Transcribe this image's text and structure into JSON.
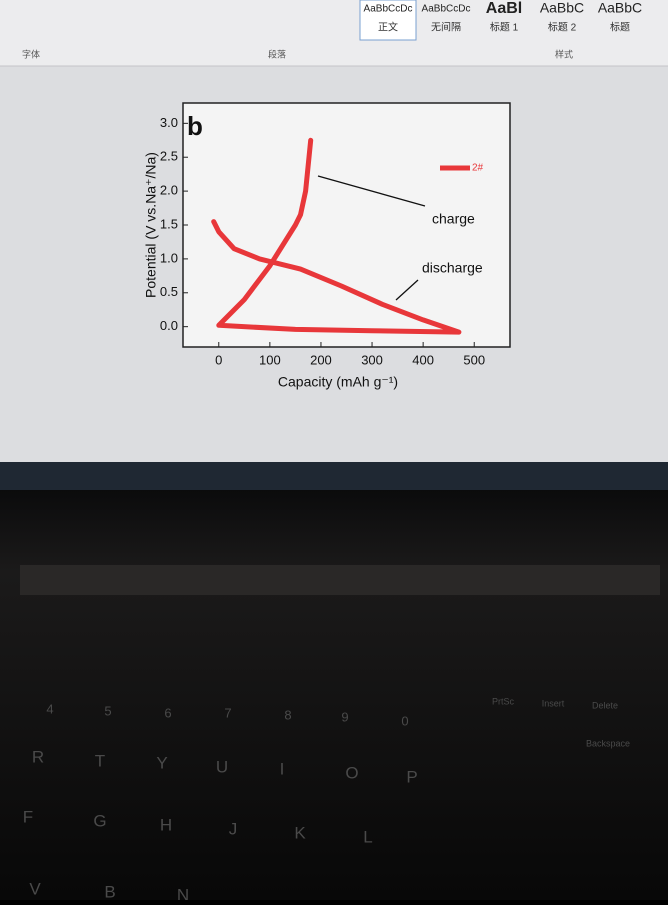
{
  "ribbon": {
    "groups": [
      "字体",
      "段落",
      "样式"
    ],
    "styles": [
      {
        "sample": "AaBbCcDc",
        "name": "正文"
      },
      {
        "sample": "AaBbCcDc",
        "name": "无间隔"
      },
      {
        "sample": "AaBl",
        "name": "标题 1"
      },
      {
        "sample": "AaBbC",
        "name": "标题 2"
      },
      {
        "sample": "AaBbC",
        "name": "标题"
      }
    ]
  },
  "chart_data": {
    "type": "line",
    "panel_label": "b",
    "x_label": "Capacity (mAh g⁻¹)",
    "y_label": "Potential (V vs.Na⁺/Na)",
    "series": [
      {
        "name": "2#",
        "color": "#e8373a",
        "x": [
          -10,
          0,
          30,
          80,
          160,
          240,
          320,
          400,
          470,
          300,
          150,
          0,
          50,
          100,
          150,
          160,
          170,
          180
        ],
        "values": [
          1.55,
          1.4,
          1.15,
          1.0,
          0.85,
          0.6,
          0.33,
          0.1,
          -0.08,
          -0.06,
          -0.04,
          0.02,
          0.4,
          0.9,
          1.5,
          1.65,
          2.0,
          2.75
        ]
      }
    ],
    "annotations": [
      "charge",
      "discharge"
    ],
    "xlim": [
      -70,
      570
    ],
    "xticks": [
      0,
      100,
      200,
      300,
      400,
      500
    ],
    "ylim": [
      -0.3,
      3.3
    ],
    "yticks": [
      {
        "value": 0,
        "label": "0.0"
      },
      {
        "value": 0.5,
        "label": "0.5"
      },
      {
        "value": 1,
        "label": "1.0"
      },
      {
        "value": 1.5,
        "label": "1.5"
      },
      {
        "value": 2,
        "label": "2.0"
      },
      {
        "value": 2.5,
        "label": "2.5"
      },
      {
        "value": 3,
        "label": "3.0"
      }
    ],
    "legend": "upper right"
  },
  "keyboard": {
    "keys": [
      "4",
      "5",
      "6",
      "7",
      "8",
      "9",
      "0",
      "R",
      "T",
      "Y",
      "U",
      "I",
      "O",
      "P",
      "F",
      "G",
      "H",
      "J",
      "K",
      "L",
      "V",
      "B",
      "N",
      "PrtSc",
      "Insert",
      "Delete",
      "Backspace"
    ]
  }
}
